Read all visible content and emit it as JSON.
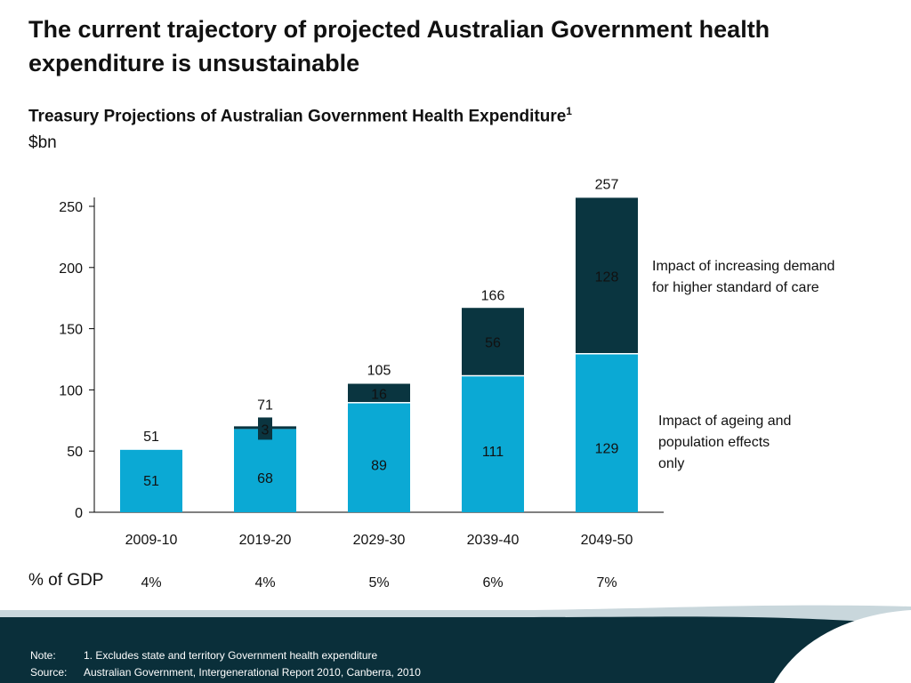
{
  "slide": {
    "title": "The current trajectory of projected Australian Government health expenditure is unsustainable",
    "subtitle": "Treasury Projections of Australian Government Health Expenditure",
    "subtitle_sup": "1",
    "unit": "$bn",
    "gdp_label": "% of GDP"
  },
  "chart_data": {
    "type": "bar",
    "stacked": true,
    "categories": [
      "2009-10",
      "2019-20",
      "2029-30",
      "2039-40",
      "2049-50"
    ],
    "series": [
      {
        "key": "ageing",
        "values": [
          51,
          68,
          89,
          111,
          129
        ],
        "color": "#0BA9D4"
      },
      {
        "key": "demand",
        "values": [
          0,
          3,
          16,
          56,
          128
        ],
        "color": "#0A3540"
      }
    ],
    "totals": [
      51,
      71,
      105,
      166,
      257
    ],
    "ylim": [
      0,
      250
    ],
    "yticks": [
      0,
      50,
      100,
      150,
      200,
      250
    ],
    "pct_gdp": [
      "4%",
      "4%",
      "5%",
      "6%",
      "7%"
    ],
    "annotations": {
      "demand": "Impact of increasing demand for higher standard of care",
      "ageing": "Impact of ageing and population effects only"
    }
  },
  "footer": {
    "note_key": "Note:",
    "note_val": "1. Excludes state and territory Government health expenditure",
    "source_key": "Source:",
    "source_val": "Australian Government, Intergenerational Report 2010, Canberra, 2010"
  },
  "colors": {
    "footer_dark": "#0A2F3A",
    "footer_light": "#C9D7DC",
    "accent": "#0BA9D4"
  }
}
